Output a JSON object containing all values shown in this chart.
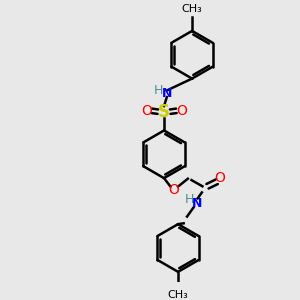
{
  "bg_color": "#e8e8e8",
  "bond_color": "#000000",
  "N_color": "#0000ff",
  "O_color": "#ff0000",
  "S_color": "#cccc00",
  "H_color": "#4a9090",
  "line_width": 1.8,
  "font_size": 9,
  "fig_size": [
    3.0,
    3.0
  ],
  "dpi": 100,
  "xlim": [
    0,
    10
  ],
  "ylim": [
    0,
    10
  ]
}
